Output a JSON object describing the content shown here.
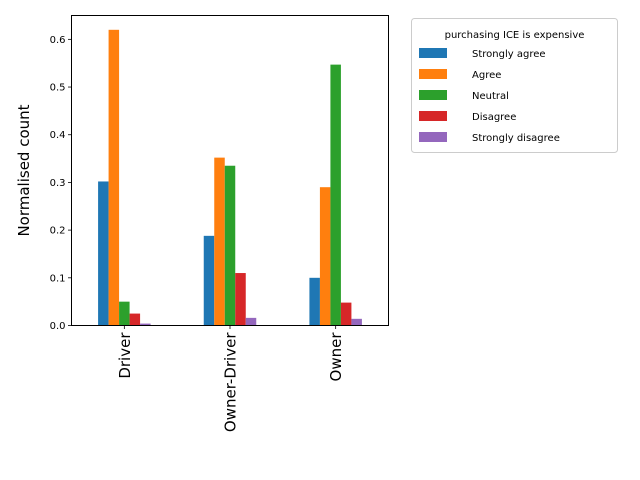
{
  "chart_data": {
    "type": "bar",
    "title": "",
    "xlabel": "",
    "ylabel": "Normalised count",
    "ylim": [
      0,
      0.65
    ],
    "yticks": [
      "0.0",
      "0.1",
      "0.2",
      "0.3",
      "0.4",
      "0.5",
      "0.6"
    ],
    "categories": [
      "Driver",
      "Owner-Driver",
      "Owner"
    ],
    "legend_title": "purchasing ICE is expensive",
    "legend_position": "outside upper-right",
    "grid": false,
    "series": [
      {
        "name": "Strongly agree",
        "color": "#1f77b4",
        "values": [
          0.302,
          0.188,
          0.1
        ]
      },
      {
        "name": "Agree",
        "color": "#ff7f0e",
        "values": [
          0.62,
          0.352,
          0.29
        ]
      },
      {
        "name": "Neutral",
        "color": "#2ca02c",
        "values": [
          0.05,
          0.335,
          0.547
        ]
      },
      {
        "name": "Disagree",
        "color": "#d62728",
        "values": [
          0.025,
          0.11,
          0.048
        ]
      },
      {
        "name": "Strongly disagree",
        "color": "#9467bd",
        "values": [
          0.004,
          0.016,
          0.014
        ]
      }
    ]
  }
}
